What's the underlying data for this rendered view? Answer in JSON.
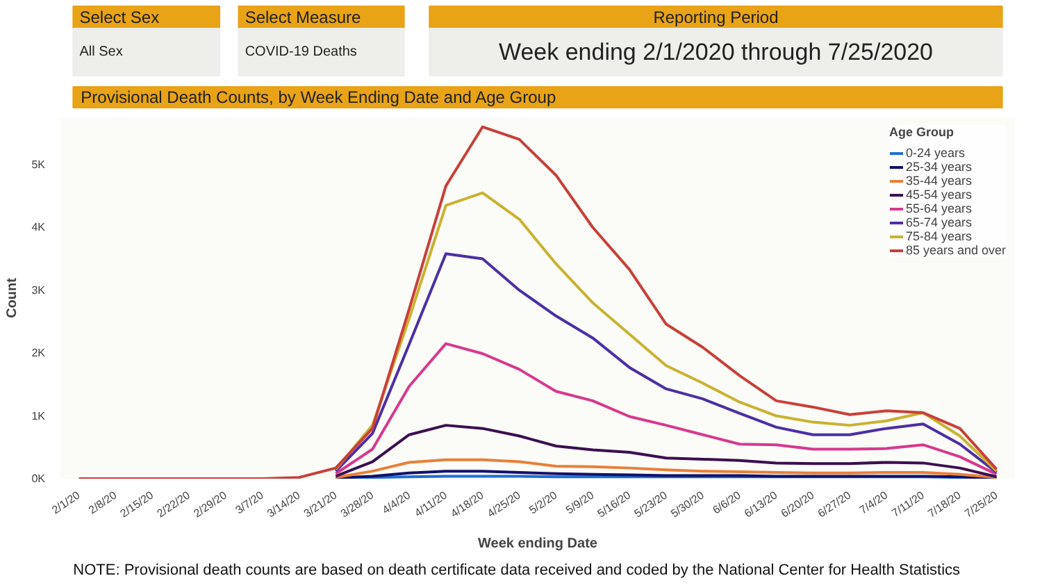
{
  "chart_data": {
    "type": "line",
    "title": "Provisional Death Counts, by Week Ending Date and Age Group",
    "xlabel": "Week ending Date",
    "ylabel": "Count",
    "legend_title": "Age Group",
    "annotations": [
      "Select Sex",
      "All Sex",
      "Select Measure",
      "COVID-19 Deaths",
      "Reporting Period",
      "Week ending 2/1/2020 through 7/25/2020",
      "NOTE: Provisional death counts are based on death certificate data received and coded by the National Center for Health Statistics"
    ],
    "categories": [
      "2/1/20",
      "2/8/20",
      "2/15/20",
      "2/22/20",
      "2/29/20",
      "3/7/20",
      "3/14/20",
      "3/21/20",
      "3/28/20",
      "4/4/20",
      "4/11/20",
      "4/18/20",
      "4/25/20",
      "5/2/20",
      "5/9/20",
      "5/16/20",
      "5/23/20",
      "5/30/20",
      "6/6/20",
      "6/13/20",
      "6/20/20",
      "6/27/20",
      "7/4/20",
      "7/11/20",
      "7/18/20",
      "7/25/20"
    ],
    "ylim": [
      0,
      5750
    ],
    "yticks": [
      {
        "value": 0,
        "label": "0K"
      },
      {
        "value": 1000,
        "label": "1K"
      },
      {
        "value": 2000,
        "label": "2K"
      },
      {
        "value": 3000,
        "label": "3K"
      },
      {
        "value": 4000,
        "label": "4K"
      },
      {
        "value": 5000,
        "label": "5K"
      }
    ],
    "grid": false,
    "legend": "top right",
    "marker": "none",
    "line_style": "solid",
    "series": [
      {
        "name": "0-24 years",
        "color": "#1f6fd0",
        "values": [
          null,
          null,
          null,
          null,
          null,
          null,
          null,
          0,
          20,
          30,
          40,
          40,
          40,
          30,
          30,
          30,
          30,
          30,
          30,
          30,
          30,
          30,
          30,
          30,
          20,
          0
        ]
      },
      {
        "name": "25-34 years",
        "color": "#12126b",
        "values": [
          null,
          null,
          null,
          null,
          null,
          null,
          null,
          10,
          40,
          90,
          120,
          120,
          100,
          80,
          70,
          60,
          50,
          50,
          50,
          40,
          40,
          40,
          40,
          40,
          30,
          10
        ]
      },
      {
        "name": "35-44 years",
        "color": "#e8803a",
        "values": [
          null,
          null,
          null,
          null,
          null,
          null,
          null,
          20,
          120,
          260,
          300,
          300,
          270,
          200,
          190,
          170,
          140,
          120,
          110,
          100,
          90,
          90,
          100,
          100,
          70,
          20
        ]
      },
      {
        "name": "45-54 years",
        "color": "#3b0f50",
        "values": [
          null,
          null,
          null,
          null,
          null,
          null,
          null,
          40,
          270,
          700,
          850,
          800,
          680,
          520,
          460,
          420,
          330,
          310,
          290,
          250,
          240,
          240,
          260,
          250,
          170,
          30
        ]
      },
      {
        "name": "55-64 years",
        "color": "#d6398f",
        "values": [
          null,
          null,
          null,
          null,
          null,
          null,
          null,
          80,
          470,
          1470,
          2150,
          1990,
          1740,
          1390,
          1240,
          990,
          850,
          700,
          550,
          540,
          470,
          470,
          480,
          540,
          350,
          70
        ]
      },
      {
        "name": "65-74 years",
        "color": "#4b2fa6",
        "values": [
          null,
          null,
          null,
          null,
          null,
          null,
          null,
          120,
          720,
          2140,
          3580,
          3500,
          3000,
          2590,
          2240,
          1770,
          1430,
          1270,
          1040,
          820,
          700,
          700,
          800,
          870,
          550,
          100
        ]
      },
      {
        "name": "75-84 years",
        "color": "#c9b230",
        "values": [
          null,
          null,
          null,
          null,
          null,
          null,
          null,
          150,
          850,
          2550,
          4350,
          4550,
          4130,
          3420,
          2800,
          2300,
          1800,
          1520,
          1220,
          1000,
          900,
          850,
          920,
          1050,
          680,
          120
        ]
      },
      {
        "name": "85 years and over",
        "color": "#c8403a",
        "values": [
          0,
          0,
          0,
          0,
          0,
          0,
          20,
          170,
          800,
          2700,
          4660,
          5600,
          5400,
          4830,
          4000,
          3330,
          2460,
          2090,
          1640,
          1240,
          1140,
          1020,
          1080,
          1050,
          800,
          150
        ]
      }
    ]
  }
}
